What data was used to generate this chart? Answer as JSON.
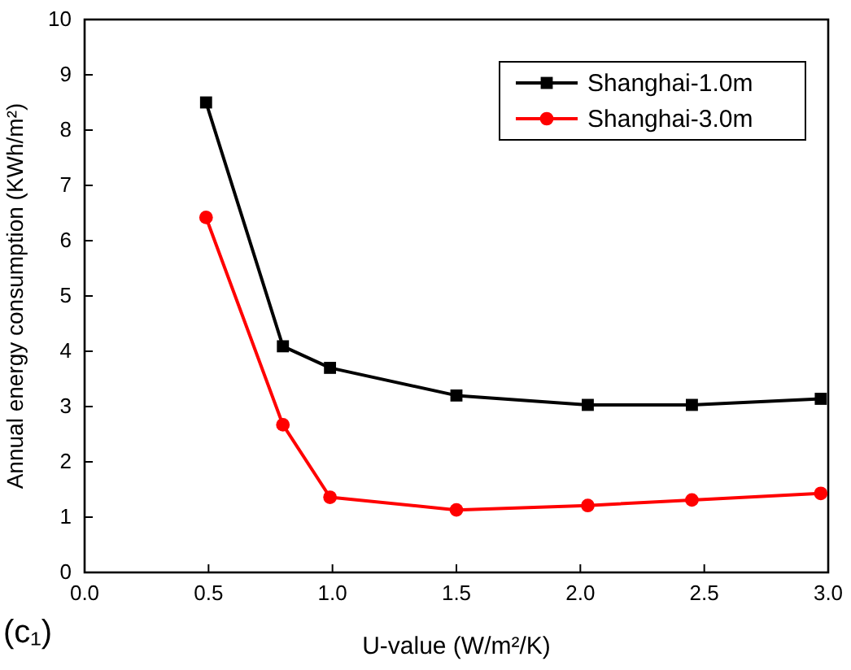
{
  "chart_data": {
    "type": "line",
    "xlabel": "U-value  (W/m²/K)",
    "ylabel": "Annual energy consumption  (KWh/m²)",
    "xlim": [
      0,
      3
    ],
    "xticks": [
      {
        "value": 0,
        "label": "0.0"
      },
      0.5,
      {
        "value": 1,
        "label": "1.0"
      },
      1.5,
      {
        "value": 2,
        "label": "2.0"
      },
      2.5,
      {
        "value": 3,
        "label": "3.0"
      }
    ],
    "ylim": [
      0,
      10
    ],
    "yticks": [
      0,
      1,
      2,
      3,
      4,
      5,
      6,
      7,
      8,
      9,
      10
    ],
    "legend": "top right",
    "grid": false,
    "line_style": "solid",
    "annotations": [
      "(c₁)"
    ],
    "series": [
      {
        "name": "Shanghai-1.0m",
        "color": "#000000",
        "marker": "square",
        "x": [
          0.49,
          0.8,
          0.99,
          1.5,
          2.03,
          2.45,
          2.97
        ],
        "values": [
          8.5,
          4.09,
          3.7,
          3.2,
          3.03,
          3.03,
          3.14
        ]
      },
      {
        "name": "Shanghai-3.0m",
        "color": "#ff0000",
        "marker": "circle",
        "x": [
          0.49,
          0.8,
          0.99,
          1.5,
          2.03,
          2.45,
          2.97
        ],
        "values": [
          6.42,
          2.67,
          1.36,
          1.13,
          1.21,
          1.31,
          1.43
        ]
      }
    ]
  }
}
